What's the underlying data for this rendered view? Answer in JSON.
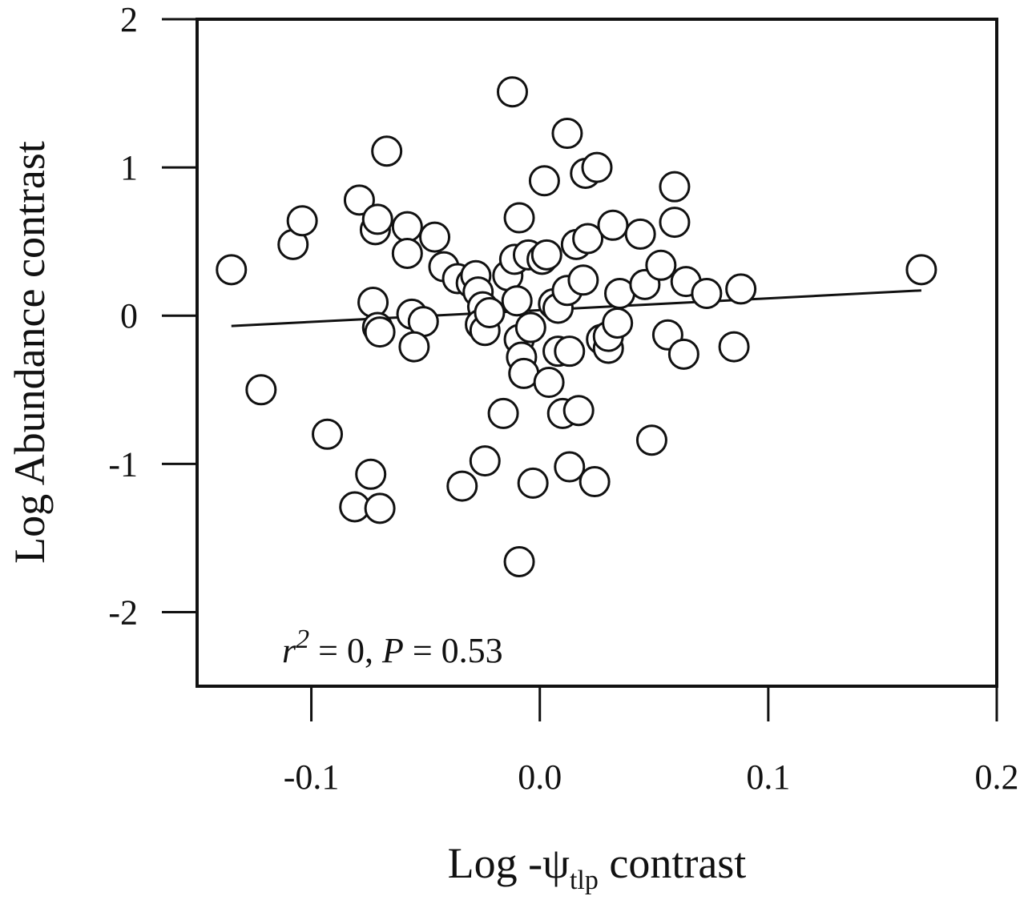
{
  "chart_data": {
    "type": "scatter",
    "xlabel": {
      "prefix": "Log -ψ",
      "subscript": "tlp",
      "suffix": " contrast"
    },
    "ylabel": "Log Abundance contrast",
    "xlim": [
      -0.15,
      0.2
    ],
    "ylim": [
      -2.5,
      2
    ],
    "x_ticks": [
      -0.1,
      0.0,
      0.1,
      0.2
    ],
    "x_tick_labels": [
      "-0.1",
      "0.0",
      "0.1",
      "0.2"
    ],
    "y_ticks": [
      -2,
      -1,
      0,
      1,
      2
    ],
    "y_tick_labels": [
      "-2",
      "-1",
      "0",
      "1",
      "2"
    ],
    "annotation": {
      "r_label": "r",
      "r_exp": "2",
      "text": " = 0, ",
      "p_label": "P",
      "p_text": " = 0.53"
    },
    "regression_line": {
      "x": [
        -0.135,
        0.167
      ],
      "y": [
        -0.07,
        0.17
      ]
    },
    "points": [
      {
        "x": -0.135,
        "y": 0.31
      },
      {
        "x": -0.122,
        "y": -0.5
      },
      {
        "x": -0.108,
        "y": 0.48
      },
      {
        "x": -0.104,
        "y": 0.64
      },
      {
        "x": -0.093,
        "y": -0.8
      },
      {
        "x": -0.079,
        "y": 0.78
      },
      {
        "x": -0.081,
        "y": -1.29
      },
      {
        "x": -0.074,
        "y": -1.07
      },
      {
        "x": -0.07,
        "y": -1.3
      },
      {
        "x": -0.067,
        "y": 1.11
      },
      {
        "x": -0.072,
        "y": 0.58
      },
      {
        "x": -0.071,
        "y": 0.65
      },
      {
        "x": -0.073,
        "y": 0.09
      },
      {
        "x": -0.071,
        "y": -0.08
      },
      {
        "x": -0.07,
        "y": -0.11
      },
      {
        "x": -0.058,
        "y": 0.6
      },
      {
        "x": -0.058,
        "y": 0.42
      },
      {
        "x": -0.056,
        "y": 0.01
      },
      {
        "x": -0.051,
        "y": -0.04
      },
      {
        "x": -0.055,
        "y": -0.21
      },
      {
        "x": -0.046,
        "y": 0.53
      },
      {
        "x": -0.042,
        "y": 0.33
      },
      {
        "x": -0.036,
        "y": 0.25
      },
      {
        "x": -0.034,
        "y": -1.15
      },
      {
        "x": -0.03,
        "y": 0.22
      },
      {
        "x": -0.028,
        "y": 0.27
      },
      {
        "x": -0.027,
        "y": 0.16
      },
      {
        "x": -0.025,
        "y": 0.06
      },
      {
        "x": -0.024,
        "y": -0.98
      },
      {
        "x": -0.026,
        "y": -0.06
      },
      {
        "x": -0.024,
        "y": -0.1
      },
      {
        "x": -0.022,
        "y": 0.02
      },
      {
        "x": -0.016,
        "y": -0.66
      },
      {
        "x": -0.014,
        "y": 0.27
      },
      {
        "x": -0.011,
        "y": 0.38
      },
      {
        "x": -0.012,
        "y": 1.51
      },
      {
        "x": -0.009,
        "y": 0.66
      },
      {
        "x": -0.01,
        "y": 0.1
      },
      {
        "x": -0.009,
        "y": -0.16
      },
      {
        "x": -0.008,
        "y": -0.28
      },
      {
        "x": -0.007,
        "y": -0.39
      },
      {
        "x": -0.009,
        "y": -1.66
      },
      {
        "x": -0.005,
        "y": 0.41
      },
      {
        "x": -0.004,
        "y": -0.08
      },
      {
        "x": -0.003,
        "y": -1.13
      },
      {
        "x": 0.002,
        "y": 0.91
      },
      {
        "x": 0.001,
        "y": 0.38
      },
      {
        "x": 0.003,
        "y": 0.41
      },
      {
        "x": 0.004,
        "y": -0.45
      },
      {
        "x": 0.006,
        "y": 0.08
      },
      {
        "x": 0.008,
        "y": -0.24
      },
      {
        "x": 0.008,
        "y": 0.05
      },
      {
        "x": 0.012,
        "y": 1.23
      },
      {
        "x": 0.01,
        "y": -0.66
      },
      {
        "x": 0.013,
        "y": -1.02
      },
      {
        "x": 0.012,
        "y": 0.17
      },
      {
        "x": 0.013,
        "y": -0.24
      },
      {
        "x": 0.016,
        "y": 0.48
      },
      {
        "x": 0.017,
        "y": -0.64
      },
      {
        "x": 0.019,
        "y": 0.24
      },
      {
        "x": 0.02,
        "y": 0.96
      },
      {
        "x": 0.021,
        "y": 0.52
      },
      {
        "x": 0.024,
        "y": -1.12
      },
      {
        "x": 0.025,
        "y": 1.0
      },
      {
        "x": 0.027,
        "y": -0.16
      },
      {
        "x": 0.03,
        "y": -0.22
      },
      {
        "x": 0.03,
        "y": -0.14
      },
      {
        "x": 0.032,
        "y": 0.61
      },
      {
        "x": 0.034,
        "y": -0.05
      },
      {
        "x": 0.035,
        "y": 0.15
      },
      {
        "x": 0.044,
        "y": 0.55
      },
      {
        "x": 0.046,
        "y": 0.21
      },
      {
        "x": 0.049,
        "y": -0.84
      },
      {
        "x": 0.053,
        "y": 0.34
      },
      {
        "x": 0.056,
        "y": -0.13
      },
      {
        "x": 0.059,
        "y": 0.87
      },
      {
        "x": 0.059,
        "y": 0.63
      },
      {
        "x": 0.063,
        "y": -0.26
      },
      {
        "x": 0.064,
        "y": 0.23
      },
      {
        "x": 0.073,
        "y": 0.15
      },
      {
        "x": 0.085,
        "y": -0.21
      },
      {
        "x": 0.088,
        "y": 0.18
      },
      {
        "x": 0.167,
        "y": 0.31
      }
    ]
  }
}
